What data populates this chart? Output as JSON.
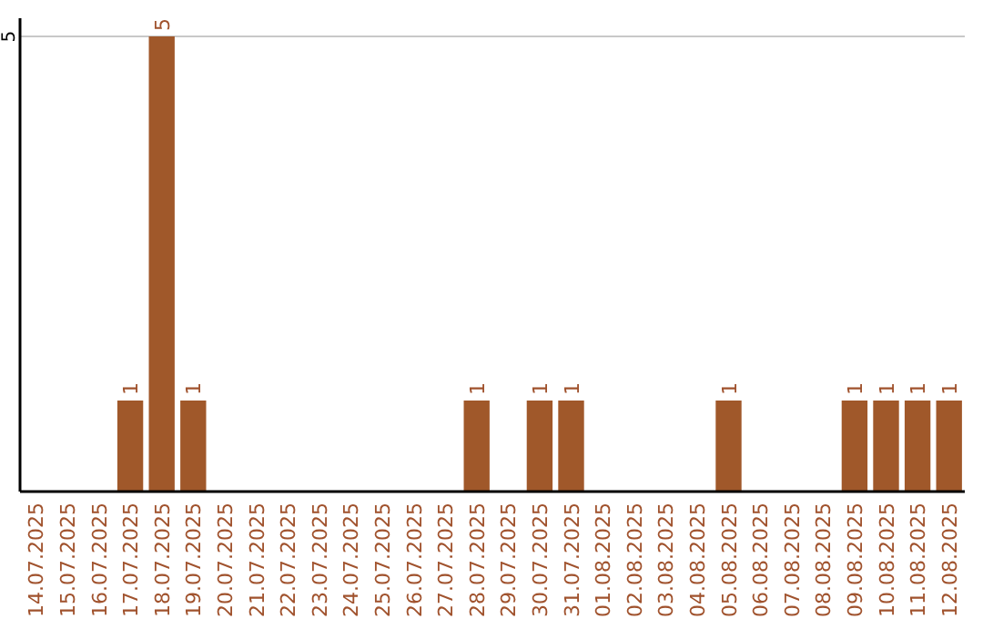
{
  "chart_data": {
    "type": "bar",
    "categories": [
      "14.07.2025",
      "15.07.2025",
      "16.07.2025",
      "17.07.2025",
      "18.07.2025",
      "19.07.2025",
      "20.07.2025",
      "21.07.2025",
      "22.07.2025",
      "23.07.2025",
      "24.07.2025",
      "25.07.2025",
      "26.07.2025",
      "27.07.2025",
      "28.07.2025",
      "29.07.2025",
      "30.07.2025",
      "31.07.2025",
      "01.08.2025",
      "02.08.2025",
      "03.08.2025",
      "04.08.2025",
      "05.08.2025",
      "06.08.2025",
      "07.08.2025",
      "08.08.2025",
      "09.08.2025",
      "10.08.2025",
      "11.08.2025",
      "12.08.2025"
    ],
    "values": [
      0,
      0,
      0,
      1,
      5,
      1,
      0,
      0,
      0,
      0,
      0,
      0,
      0,
      0,
      1,
      0,
      1,
      1,
      0,
      0,
      0,
      0,
      1,
      0,
      0,
      0,
      1,
      1,
      1,
      1
    ],
    "color": "#a0582a",
    "ylim": [
      0,
      5.2
    ],
    "yticks": [
      5
    ],
    "grid": "y",
    "value_labels": [
      null,
      null,
      null,
      "1",
      "5",
      "1",
      null,
      null,
      null,
      null,
      null,
      null,
      null,
      null,
      "1",
      null,
      "1",
      "1",
      null,
      null,
      null,
      null,
      "1",
      null,
      null,
      null,
      "1",
      "1",
      "1",
      "1"
    ]
  }
}
